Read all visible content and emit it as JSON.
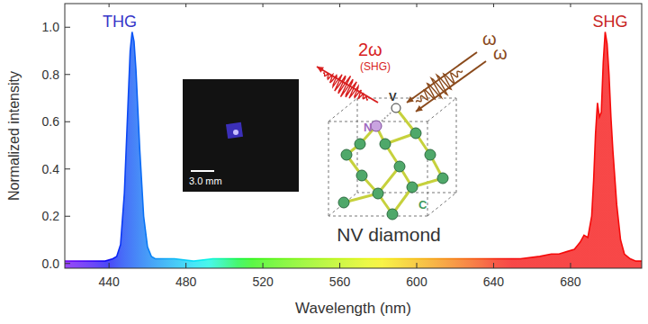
{
  "chart_data": {
    "type": "area",
    "x_label": "Wavelength (nm)",
    "y_label": "Normalized intensity",
    "xlim": [
      417,
      717
    ],
    "ylim": [
      -0.02,
      1.1
    ],
    "xticks": [
      440,
      480,
      520,
      560,
      600,
      640,
      680
    ],
    "yticks": [
      {
        "value": 0,
        "label": "0.0"
      },
      {
        "value": 0.2,
        "label": "0.2"
      },
      {
        "value": 0.4,
        "label": "0.4"
      },
      {
        "value": 0.6,
        "label": "0.6"
      },
      {
        "value": 0.8,
        "label": "0.8"
      },
      {
        "value": 1,
        "label": "1.0"
      }
    ],
    "x": [
      417,
      422,
      428,
      434,
      438,
      442,
      444,
      446,
      448,
      450,
      451,
      452,
      453,
      454,
      456,
      458,
      460,
      462,
      464,
      468,
      474,
      484,
      494,
      504,
      514,
      524,
      534,
      544,
      554,
      564,
      574,
      584,
      594,
      604,
      614,
      624,
      634,
      644,
      654,
      664,
      670,
      674,
      678,
      682,
      685,
      687,
      689,
      691,
      692,
      693,
      694,
      695,
      696,
      697,
      698,
      699,
      700,
      701,
      702,
      704,
      706,
      708,
      711,
      714,
      717
    ],
    "values": [
      0.01,
      0.01,
      0.01,
      0.01,
      0.01,
      0.02,
      0.03,
      0.08,
      0.3,
      0.7,
      0.9,
      0.98,
      0.94,
      0.82,
      0.48,
      0.2,
      0.07,
      0.03,
      0.02,
      0.02,
      0.02,
      0.01,
      0.02,
      0.02,
      0.02,
      0.02,
      0.02,
      0.02,
      0.02,
      0.02,
      0.02,
      0.02,
      0.02,
      0.02,
      0.02,
      0.02,
      0.02,
      0.02,
      0.02,
      0.03,
      0.04,
      0.04,
      0.05,
      0.06,
      0.09,
      0.12,
      0.11,
      0.2,
      0.35,
      0.55,
      0.68,
      0.62,
      0.64,
      0.85,
      0.98,
      0.93,
      0.8,
      0.62,
      0.48,
      0.25,
      0.1,
      0.04,
      0.02,
      0.01,
      0.01
    ],
    "annotations": [
      "THG",
      "SHG",
      "NV diamond",
      "2ω",
      "(SHG)",
      "ω",
      "ω",
      "N",
      "V",
      "C",
      "3.0 mm"
    ]
  }
}
